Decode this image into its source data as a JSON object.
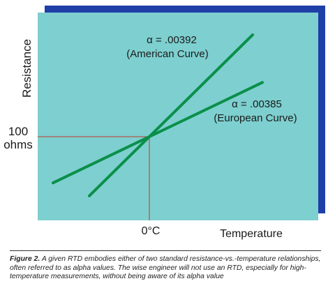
{
  "chart_data": {
    "type": "line",
    "ylabel": "Resistance",
    "xlabel": "Temperature",
    "x_tick_label": "0°C",
    "y_tick_label_line1": "100",
    "y_tick_label_line2": "ohms",
    "series": [
      {
        "name": "American Curve",
        "alpha": "α = .00392",
        "label": "(American Curve)",
        "slope_per_c": 0.00392,
        "color": "#0a8f4a"
      },
      {
        "name": "European Curve",
        "alpha": "α = .00385",
        "label": "(European Curve)",
        "slope_per_c": 0.00385,
        "color": "#0a8f4a"
      }
    ],
    "reference_point": {
      "x": 0,
      "y": 100
    },
    "reference_line_color": "#c0392b",
    "plot_background": "#7ecfcf",
    "shadow_color": "#1f3fa8",
    "grid": false,
    "legend": "none"
  },
  "caption": {
    "figure_label": "Figure 2.",
    "text": " A given RTD embodies either of two standard resistance-vs.-temperature relationships, often referred to as alpha values. The wise engineer will not use an RTD, especially for high-temperature measurements, without being aware of its alpha value"
  }
}
